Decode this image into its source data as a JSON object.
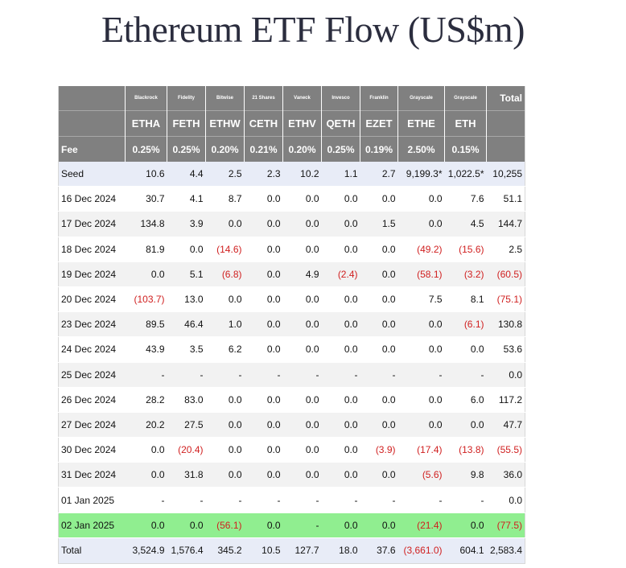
{
  "title": "Ethereum ETF Flow (US$m)",
  "table": {
    "issuers": [
      "Blackrock",
      "Fidelity",
      "Bitwise",
      "21 Shares",
      "Vaneck",
      "Invesco",
      "Franklin",
      "Grayscale",
      "Grayscale"
    ],
    "total_header": "Total",
    "tickers": [
      "ETHA",
      "FETH",
      "ETHW",
      "CETH",
      "ETHV",
      "QETH",
      "EZET",
      "ETHE",
      "ETH"
    ],
    "fee_label": "Fee",
    "fees": [
      "0.25%",
      "0.25%",
      "0.20%",
      "0.21%",
      "0.20%",
      "0.25%",
      "0.19%",
      "2.50%",
      "0.15%"
    ],
    "rows": [
      {
        "label": "Seed",
        "values": [
          "10.6",
          "4.4",
          "2.5",
          "2.3",
          "10.2",
          "1.1",
          "2.7",
          "9,199.3*",
          "1,022.5*"
        ],
        "total": "10,255",
        "style": "seed"
      },
      {
        "label": "16 Dec 2024",
        "values": [
          "30.7",
          "4.1",
          "8.7",
          "0.0",
          "0.0",
          "0.0",
          "0.0",
          "0.0",
          "7.6"
        ],
        "total": "51.1",
        "style": "plain"
      },
      {
        "label": "17 Dec 2024",
        "values": [
          "134.8",
          "3.9",
          "0.0",
          "0.0",
          "0.0",
          "0.0",
          "1.5",
          "0.0",
          "4.5"
        ],
        "total": "144.7",
        "style": "alt"
      },
      {
        "label": "18 Dec 2024",
        "values": [
          "81.9",
          "0.0",
          "(14.6)",
          "0.0",
          "0.0",
          "0.0",
          "0.0",
          "(49.2)",
          "(15.6)"
        ],
        "total": "2.5",
        "style": "plain"
      },
      {
        "label": "19 Dec 2024",
        "values": [
          "0.0",
          "5.1",
          "(6.8)",
          "0.0",
          "4.9",
          "(2.4)",
          "0.0",
          "(58.1)",
          "(3.2)"
        ],
        "total": "(60.5)",
        "style": "alt"
      },
      {
        "label": "20 Dec 2024",
        "values": [
          "(103.7)",
          "13.0",
          "0.0",
          "0.0",
          "0.0",
          "0.0",
          "0.0",
          "7.5",
          "8.1"
        ],
        "total": "(75.1)",
        "style": "plain"
      },
      {
        "label": "23 Dec 2024",
        "values": [
          "89.5",
          "46.4",
          "1.0",
          "0.0",
          "0.0",
          "0.0",
          "0.0",
          "0.0",
          "(6.1)"
        ],
        "total": "130.8",
        "style": "alt"
      },
      {
        "label": "24 Dec 2024",
        "values": [
          "43.9",
          "3.5",
          "6.2",
          "0.0",
          "0.0",
          "0.0",
          "0.0",
          "0.0",
          "0.0"
        ],
        "total": "53.6",
        "style": "plain"
      },
      {
        "label": "25 Dec 2024",
        "values": [
          "-",
          "-",
          "-",
          "-",
          "-",
          "-",
          "-",
          "-",
          "-"
        ],
        "total": "0.0",
        "style": "alt"
      },
      {
        "label": "26 Dec 2024",
        "values": [
          "28.2",
          "83.0",
          "0.0",
          "0.0",
          "0.0",
          "0.0",
          "0.0",
          "0.0",
          "6.0"
        ],
        "total": "117.2",
        "style": "plain"
      },
      {
        "label": "27 Dec 2024",
        "values": [
          "20.2",
          "27.5",
          "0.0",
          "0.0",
          "0.0",
          "0.0",
          "0.0",
          "0.0",
          "0.0"
        ],
        "total": "47.7",
        "style": "alt"
      },
      {
        "label": "30 Dec 2024",
        "values": [
          "0.0",
          "(20.4)",
          "0.0",
          "0.0",
          "0.0",
          "0.0",
          "(3.9)",
          "(17.4)",
          "(13.8)"
        ],
        "total": "(55.5)",
        "style": "plain"
      },
      {
        "label": "31 Dec 2024",
        "values": [
          "0.0",
          "31.8",
          "0.0",
          "0.0",
          "0.0",
          "0.0",
          "0.0",
          "(5.6)",
          "9.8"
        ],
        "total": "36.0",
        "style": "alt"
      },
      {
        "label": "01 Jan 2025",
        "values": [
          "-",
          "-",
          "-",
          "-",
          "-",
          "-",
          "-",
          "-",
          "-"
        ],
        "total": "0.0",
        "style": "plain"
      },
      {
        "label": "02 Jan 2025",
        "values": [
          "0.0",
          "0.0",
          "(56.1)",
          "0.0",
          "-",
          "0.0",
          "0.0",
          "(21.4)",
          "0.0"
        ],
        "total": "(77.5)",
        "style": "green"
      },
      {
        "label": "Total",
        "values": [
          "3,524.9",
          "1,576.4",
          "345.2",
          "10.5",
          "127.7",
          "18.0",
          "37.6",
          "(3,661.0)",
          "604.1"
        ],
        "total": "2,583.4",
        "style": "total"
      }
    ]
  },
  "colors": {
    "header_bg": "#808080",
    "negative": "#d01f1f",
    "highlight_row": "#90ee90",
    "seed_total_bg": "#e8ecf7",
    "alt_row_bg": "#f2f2f2"
  }
}
